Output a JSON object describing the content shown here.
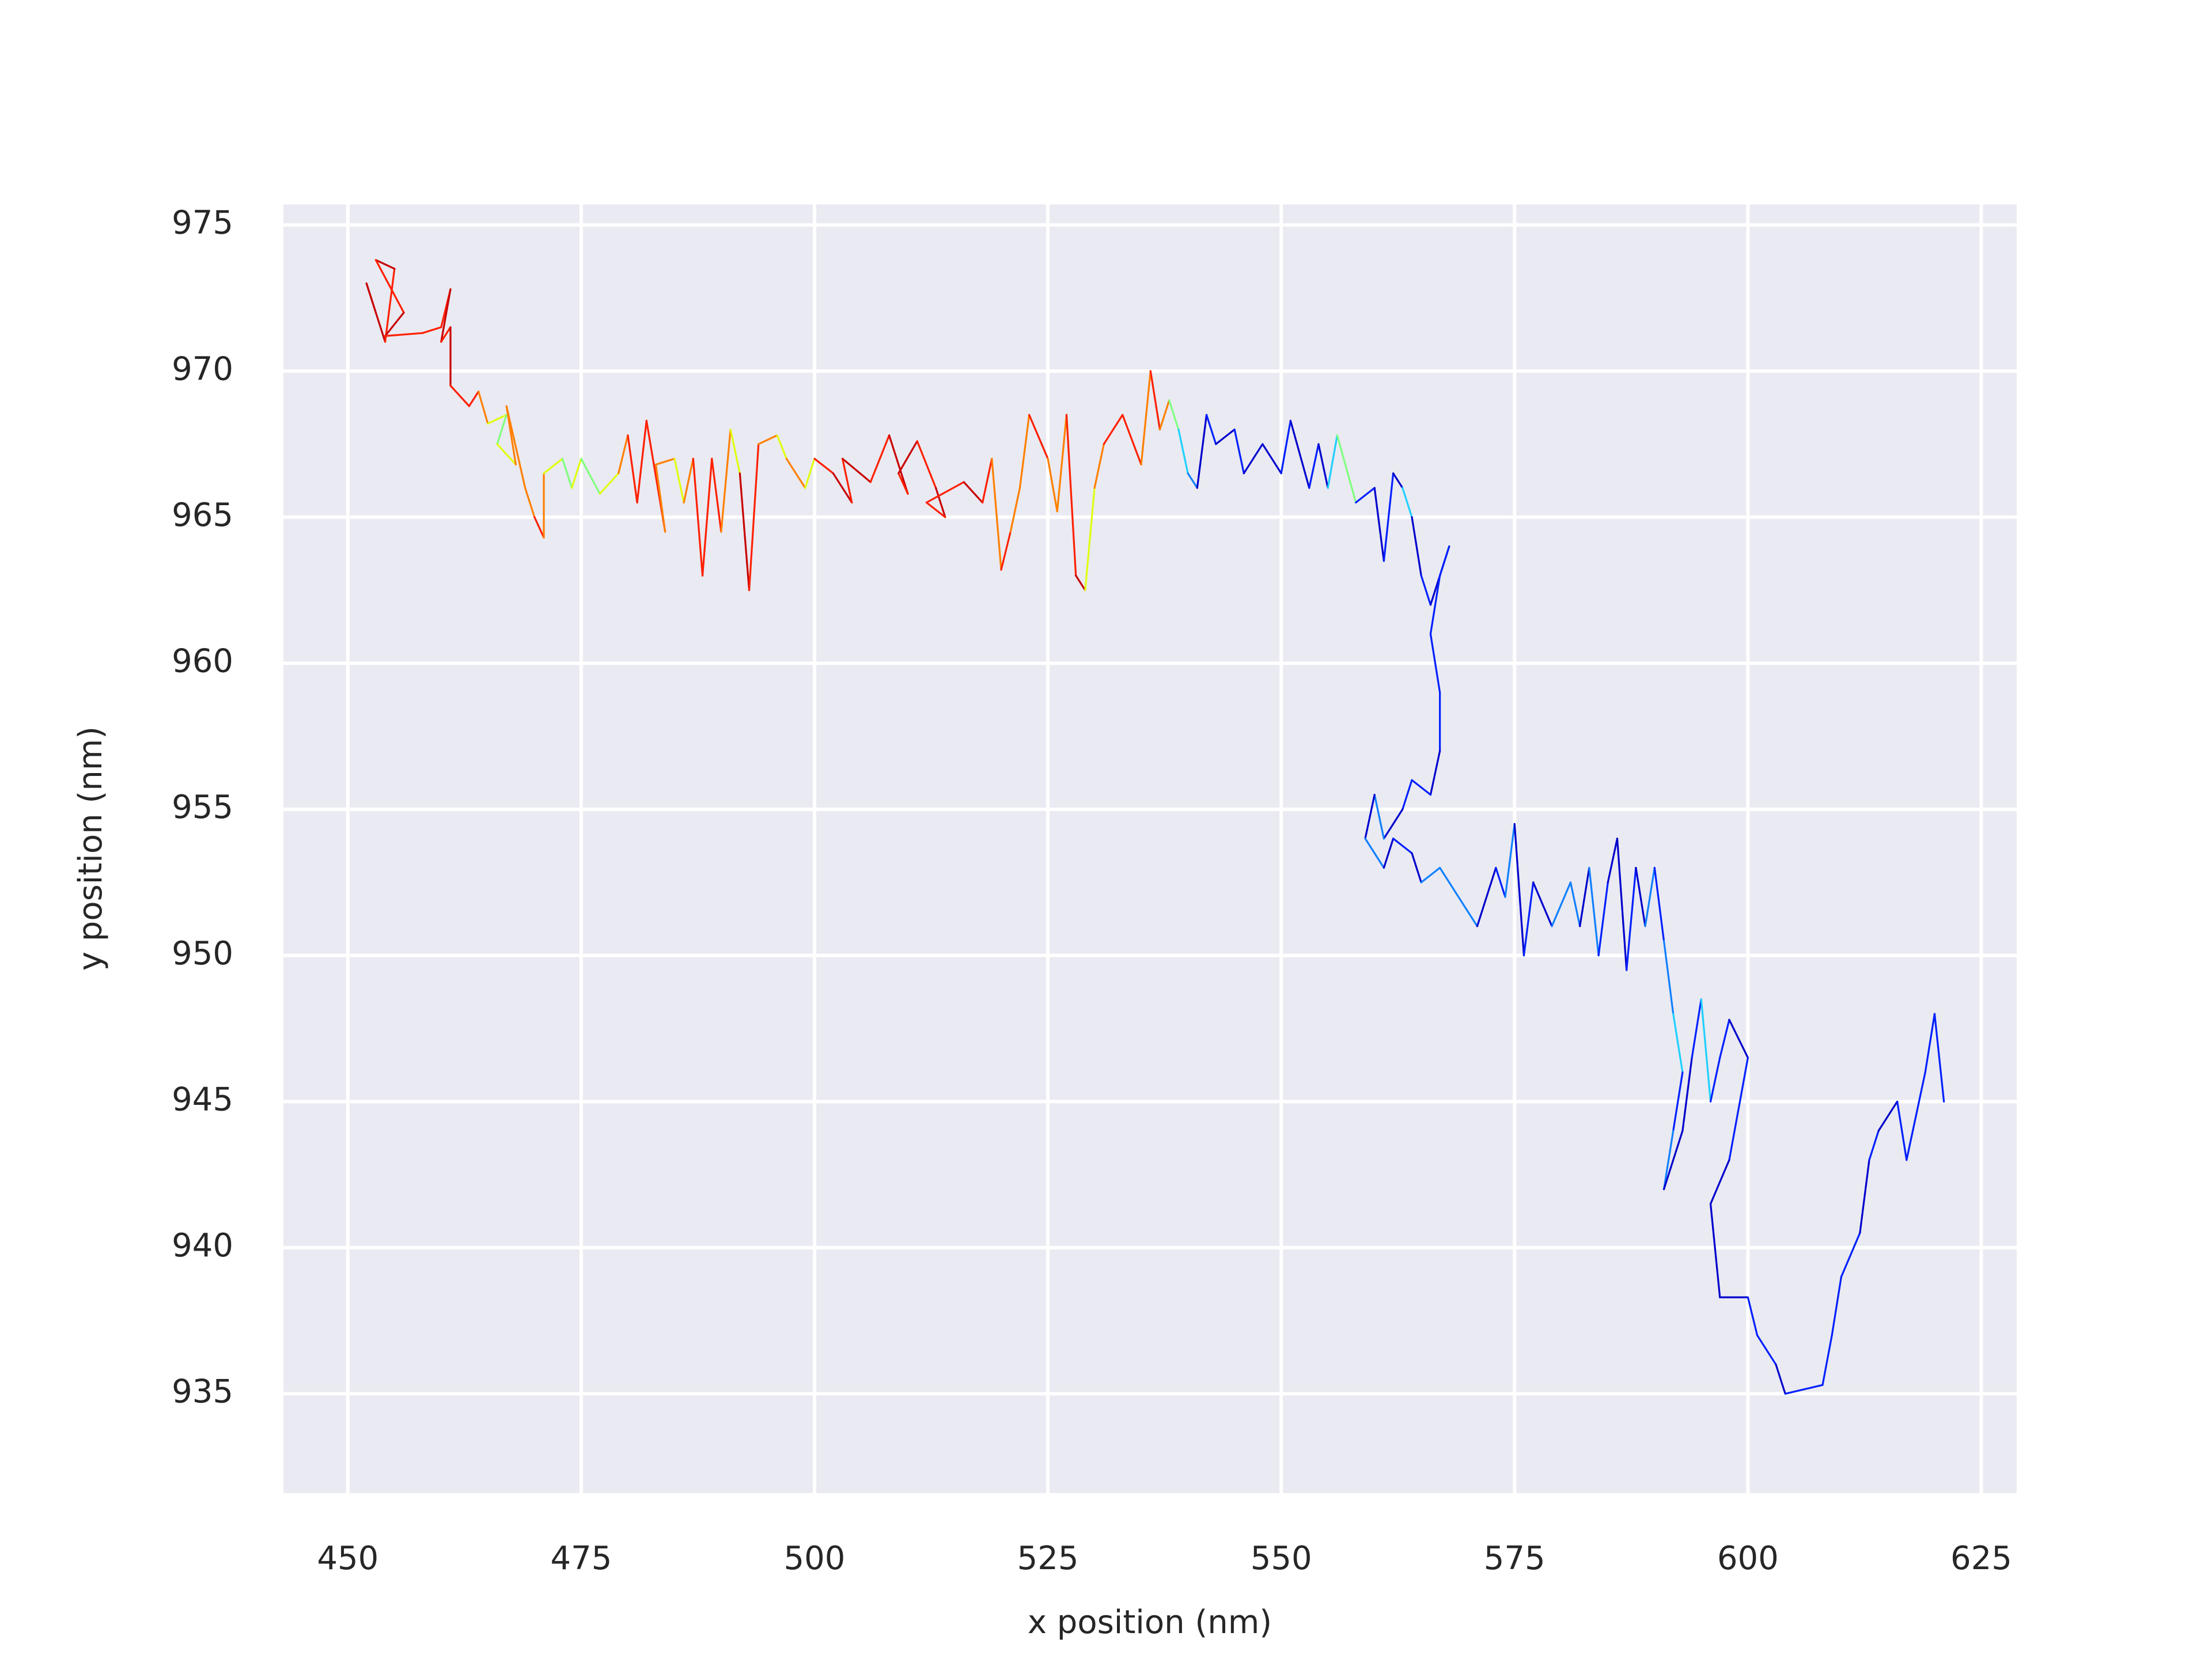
{
  "chart_data": {
    "type": "line",
    "x_label": "x position (nm)",
    "y_label": "y position (nm)",
    "xlim": [
      443.1,
      628.8
    ],
    "ylim": [
      931.6,
      975.7
    ],
    "xticks": [
      450,
      475,
      500,
      525,
      550,
      575,
      600,
      625
    ],
    "yticks": [
      935,
      940,
      945,
      950,
      955,
      960,
      965,
      970,
      975
    ],
    "grid": true,
    "background": "#eaeaf2",
    "x": [
      453,
      452,
      454,
      455,
      453,
      456,
      454,
      458,
      460,
      461,
      460,
      461,
      461,
      463,
      464,
      465,
      467,
      466,
      468,
      467,
      469,
      470,
      471,
      471,
      473,
      474,
      475,
      477,
      479,
      480,
      481,
      482,
      484,
      483,
      485,
      486,
      487,
      488,
      489,
      490,
      491,
      492,
      493,
      494,
      496,
      497,
      499,
      500,
      502,
      504,
      503,
      506,
      508,
      510,
      509,
      511,
      513,
      514,
      512,
      516,
      518,
      519,
      520,
      521,
      522,
      523,
      525,
      526,
      527,
      528,
      529,
      530,
      531,
      533,
      535,
      536,
      537,
      538,
      539,
      540,
      541,
      542,
      543,
      545,
      546,
      548,
      550,
      551,
      553,
      554,
      555,
      556,
      558,
      560,
      561,
      562,
      563,
      564,
      565,
      566,
      568,
      567,
      566,
      567,
      567,
      566,
      564,
      563,
      561,
      560,
      559,
      561,
      562,
      564,
      565,
      567,
      569,
      571,
      573,
      574,
      575,
      576,
      577,
      579,
      581,
      582,
      583,
      584,
      585,
      586,
      587,
      588,
      589,
      590,
      591,
      592,
      593,
      592,
      591,
      593,
      594,
      595,
      596,
      597,
      598,
      600,
      598,
      596,
      597,
      600,
      601,
      603,
      604,
      608,
      609,
      610,
      612,
      613,
      614,
      616,
      617,
      619,
      620,
      621
    ],
    "values": [
      972,
      973,
      971,
      973.5,
      973.8,
      972,
      971.2,
      971.3,
      971.5,
      972.8,
      971,
      971.5,
      969.5,
      968.8,
      969.3,
      968.2,
      968.5,
      967.5,
      966.8,
      968.8,
      966,
      965,
      964.3,
      966.5,
      967,
      966,
      967,
      965.8,
      966.5,
      967.8,
      965.5,
      968.3,
      964.5,
      966.8,
      967,
      965.5,
      967,
      963,
      967,
      964.5,
      968,
      966.5,
      962.5,
      967.5,
      967.8,
      967,
      966,
      967,
      966.5,
      965.5,
      967,
      966.2,
      967.8,
      965.8,
      966.5,
      967.6,
      966,
      965,
      965.5,
      966.2,
      965.5,
      967,
      963.2,
      964.5,
      966,
      968.5,
      967,
      965.2,
      968.5,
      963,
      962.5,
      966,
      967.5,
      968.5,
      966.8,
      970,
      968,
      969,
      968,
      966.5,
      966,
      968.5,
      967.5,
      968,
      966.5,
      967.5,
      966.5,
      968.3,
      966,
      967.5,
      966,
      967.8,
      965.5,
      966,
      963.5,
      966.5,
      966,
      965,
      963,
      962,
      964,
      963,
      961,
      959,
      957,
      955.5,
      956,
      955,
      954,
      955.5,
      954,
      953,
      954,
      953.5,
      952.5,
      953,
      952,
      951,
      953,
      952,
      954.5,
      950,
      952.5,
      951,
      952.5,
      951,
      953,
      950,
      952.5,
      954,
      949.5,
      953,
      951,
      953,
      950.5,
      948,
      946,
      944,
      942,
      944,
      946.5,
      948.5,
      945,
      946.5,
      947.8,
      946.5,
      943,
      941.5,
      938.3,
      938.3,
      937,
      936,
      935,
      935.3,
      937,
      939,
      940.5,
      943,
      944,
      945,
      943,
      946,
      948,
      945
    ],
    "segment_colors": [
      "#c80000",
      "#c80000",
      "#ff2000",
      "#c80000",
      "#ff2000",
      "#c80000",
      "#ff2000",
      "#ff2000",
      "#ff2000",
      "#c80000",
      "#ff2000",
      "#c80000",
      "#ff2000",
      "#ff2000",
      "#ff8000",
      "#e0ff10",
      "#80ff80",
      "#e0ff10",
      "#ff8000",
      "#ff8000",
      "#ff8000",
      "#ff2000",
      "#ff8000",
      "#e0ff10",
      "#80ff80",
      "#e0ff10",
      "#80ff80",
      "#e0ff10",
      "#ff8000",
      "#ff2000",
      "#ff2000",
      "#ff2000",
      "#ff8000",
      "#ff8000",
      "#e0ff10",
      "#ff8000",
      "#ff2000",
      "#ff2000",
      "#ff2000",
      "#ff8000",
      "#e0ff10",
      "#c80000",
      "#ff2000",
      "#ff8000",
      "#e0ff10",
      "#ff8000",
      "#e0ff10",
      "#ff2000",
      "#c80000",
      "#ff2000",
      "#c80000",
      "#ff2000",
      "#c80000",
      "#ff2000",
      "#c80000",
      "#ff2000",
      "#c80000",
      "#ff2000",
      "#ff2000",
      "#c80000",
      "#ff2000",
      "#ff8000",
      "#ff2000",
      "#ff8000",
      "#ff8000",
      "#ff2000",
      "#ff8000",
      "#ff8000",
      "#ff2000",
      "#c80000",
      "#e0ff10",
      "#ff8000",
      "#ff2000",
      "#ff2000",
      "#ff8000",
      "#ff2000",
      "#ff8000",
      "#80ff80",
      "#20d0ff",
      "#1080ff",
      "#0000cd",
      "#0020ff",
      "#0000cd",
      "#0020ff",
      "#0000cd",
      "#0000cd",
      "#0020ff",
      "#0000cd",
      "#0020ff",
      "#0000cd",
      "#20d0ff",
      "#80ff80",
      "#0020ff",
      "#0000cd",
      "#0020ff",
      "#0000cd",
      "#20d0ff",
      "#0000cd",
      "#0020ff",
      "#0000cd",
      "#0020ff",
      "#0020ff",
      "#0020ff",
      "#0020ff",
      "#0000cd",
      "#0020ff",
      "#0020ff",
      "#0000cd",
      "#1080ff",
      "#0000cd",
      "#1080ff",
      "#0000cd",
      "#0020ff",
      "#0000cd",
      "#1080ff",
      "#1080ff",
      "#1080ff",
      "#0000cd",
      "#0020ff",
      "#1080ff",
      "#0000cd",
      "#0020ff",
      "#0000cd",
      "#1080ff",
      "#1080ff",
      "#0000cd",
      "#1080ff",
      "#0020ff",
      "#0000cd",
      "#0000cd",
      "#0020ff",
      "#0000cd",
      "#1080ff",
      "#0020ff",
      "#1080ff",
      "#20d0ff",
      "#0020ff",
      "#1080ff",
      "#0000cd",
      "#0000cd",
      "#0020ff",
      "#20d0ff",
      "#0020ff",
      "#0020ff",
      "#0000cd",
      "#0020ff",
      "#0000cd",
      "#0000cd",
      "#0000cd",
      "#0020ff",
      "#0020ff",
      "#0000cd",
      "#0020ff",
      "#0020ff",
      "#0020ff",
      "#0020ff",
      "#0000cd",
      "#0020ff",
      "#0000cd",
      "#0020ff",
      "#0020ff",
      "#0020ff",
      "#0020ff"
    ]
  }
}
